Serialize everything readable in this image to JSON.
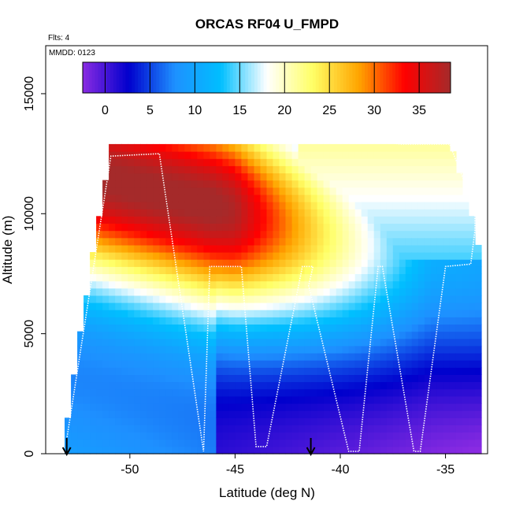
{
  "chart_data": {
    "type": "heatmap",
    "title": "ORCAS RF04 U_FMPD",
    "flights_label": "Flts: 4",
    "date_label": "MMDD: 0123",
    "xlabel": "Latitude (deg N)",
    "ylabel": "Altitude (m)",
    "xlim": [
      -54.0,
      -33.0
    ],
    "ylim": [
      0,
      17000
    ],
    "x_ticks": [
      {
        "value": -50,
        "label": "-50"
      },
      {
        "value": -45,
        "label": "-45"
      },
      {
        "value": -40,
        "label": "-40"
      },
      {
        "value": -35,
        "label": "-35"
      }
    ],
    "y_ticks": [
      {
        "value": 0,
        "label": "0"
      },
      {
        "value": 5000,
        "label": "5000"
      },
      {
        "value": 10000,
        "label": "10000"
      },
      {
        "value": 15000,
        "label": "15000"
      }
    ],
    "colorbar": {
      "range": [
        -2.5,
        38.5
      ],
      "ticks": [
        {
          "value": 0,
          "label": "0"
        },
        {
          "value": 5,
          "label": "5"
        },
        {
          "value": 10,
          "label": "10"
        },
        {
          "value": 15,
          "label": "15"
        },
        {
          "value": 20,
          "label": "20"
        },
        {
          "value": 25,
          "label": "25"
        },
        {
          "value": 30,
          "label": "30"
        },
        {
          "value": 35,
          "label": "35"
        }
      ],
      "colors": [
        "#8a2be2",
        "#0000cd",
        "#1e90ff",
        "#00bfff",
        "#ffffff",
        "#ffff66",
        "#ffa500",
        "#ff0000",
        "#a52a2a"
      ]
    },
    "flight_track": {
      "lat": [
        -53.0,
        -50.9,
        -48.6,
        -46.5,
        -46.2,
        -44.7,
        -44.0,
        -43.5,
        -41.8,
        -41.3,
        -41.5,
        -39.6,
        -39.1,
        -38.2,
        -38.0,
        -36.5,
        -36.2,
        -35.0,
        -33.8,
        -33.6,
        -33.6,
        -34.8,
        -37.1,
        -37.6
      ],
      "alt": [
        600,
        12400,
        12500,
        100,
        7800,
        7800,
        300,
        300,
        7800,
        7800,
        7000,
        100,
        100,
        7800,
        7800,
        100,
        100,
        7800,
        7900,
        9300,
        10200,
        12900,
        12900,
        12950
      ]
    },
    "arrows_lat": [
      -53.0,
      -41.4
    ]
  }
}
